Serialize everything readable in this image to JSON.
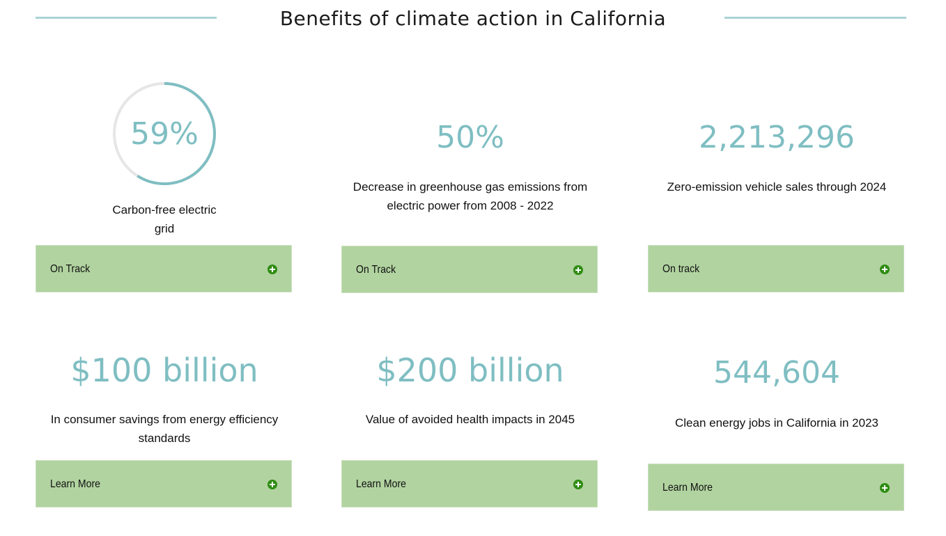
{
  "page": {
    "title": "Benefits of climate action in California",
    "accent_color": "#7fbec2",
    "button_color": "#b1d3a0",
    "icon_color": "#2e8c12"
  },
  "cards": [
    {
      "value": "59%",
      "progress_percent": 59,
      "description": "Carbon-free electric grid",
      "button": "On Track",
      "icon": "plus-circle-icon"
    },
    {
      "value": "50%",
      "description": "Decrease in greenhouse gas emissions from electric power from 2008 - 2022",
      "button": "On Track",
      "icon": "plus-circle-icon"
    },
    {
      "value": "2,213,296",
      "description": "Zero-emission vehicle sales through 2024",
      "button": "On track",
      "icon": "plus-circle-icon"
    },
    {
      "value": "$100 billion",
      "description": "In consumer savings from energy efficiency standards",
      "button": "Learn More",
      "icon": "plus-circle-icon"
    },
    {
      "value": "$200 billion",
      "description": "Value of avoided health impacts in 2045",
      "button": "Learn More",
      "icon": "plus-circle-icon"
    },
    {
      "value": "544,604",
      "description": "Clean energy jobs in California in 2023",
      "button": "Learn More",
      "icon": "plus-circle-icon"
    }
  ]
}
